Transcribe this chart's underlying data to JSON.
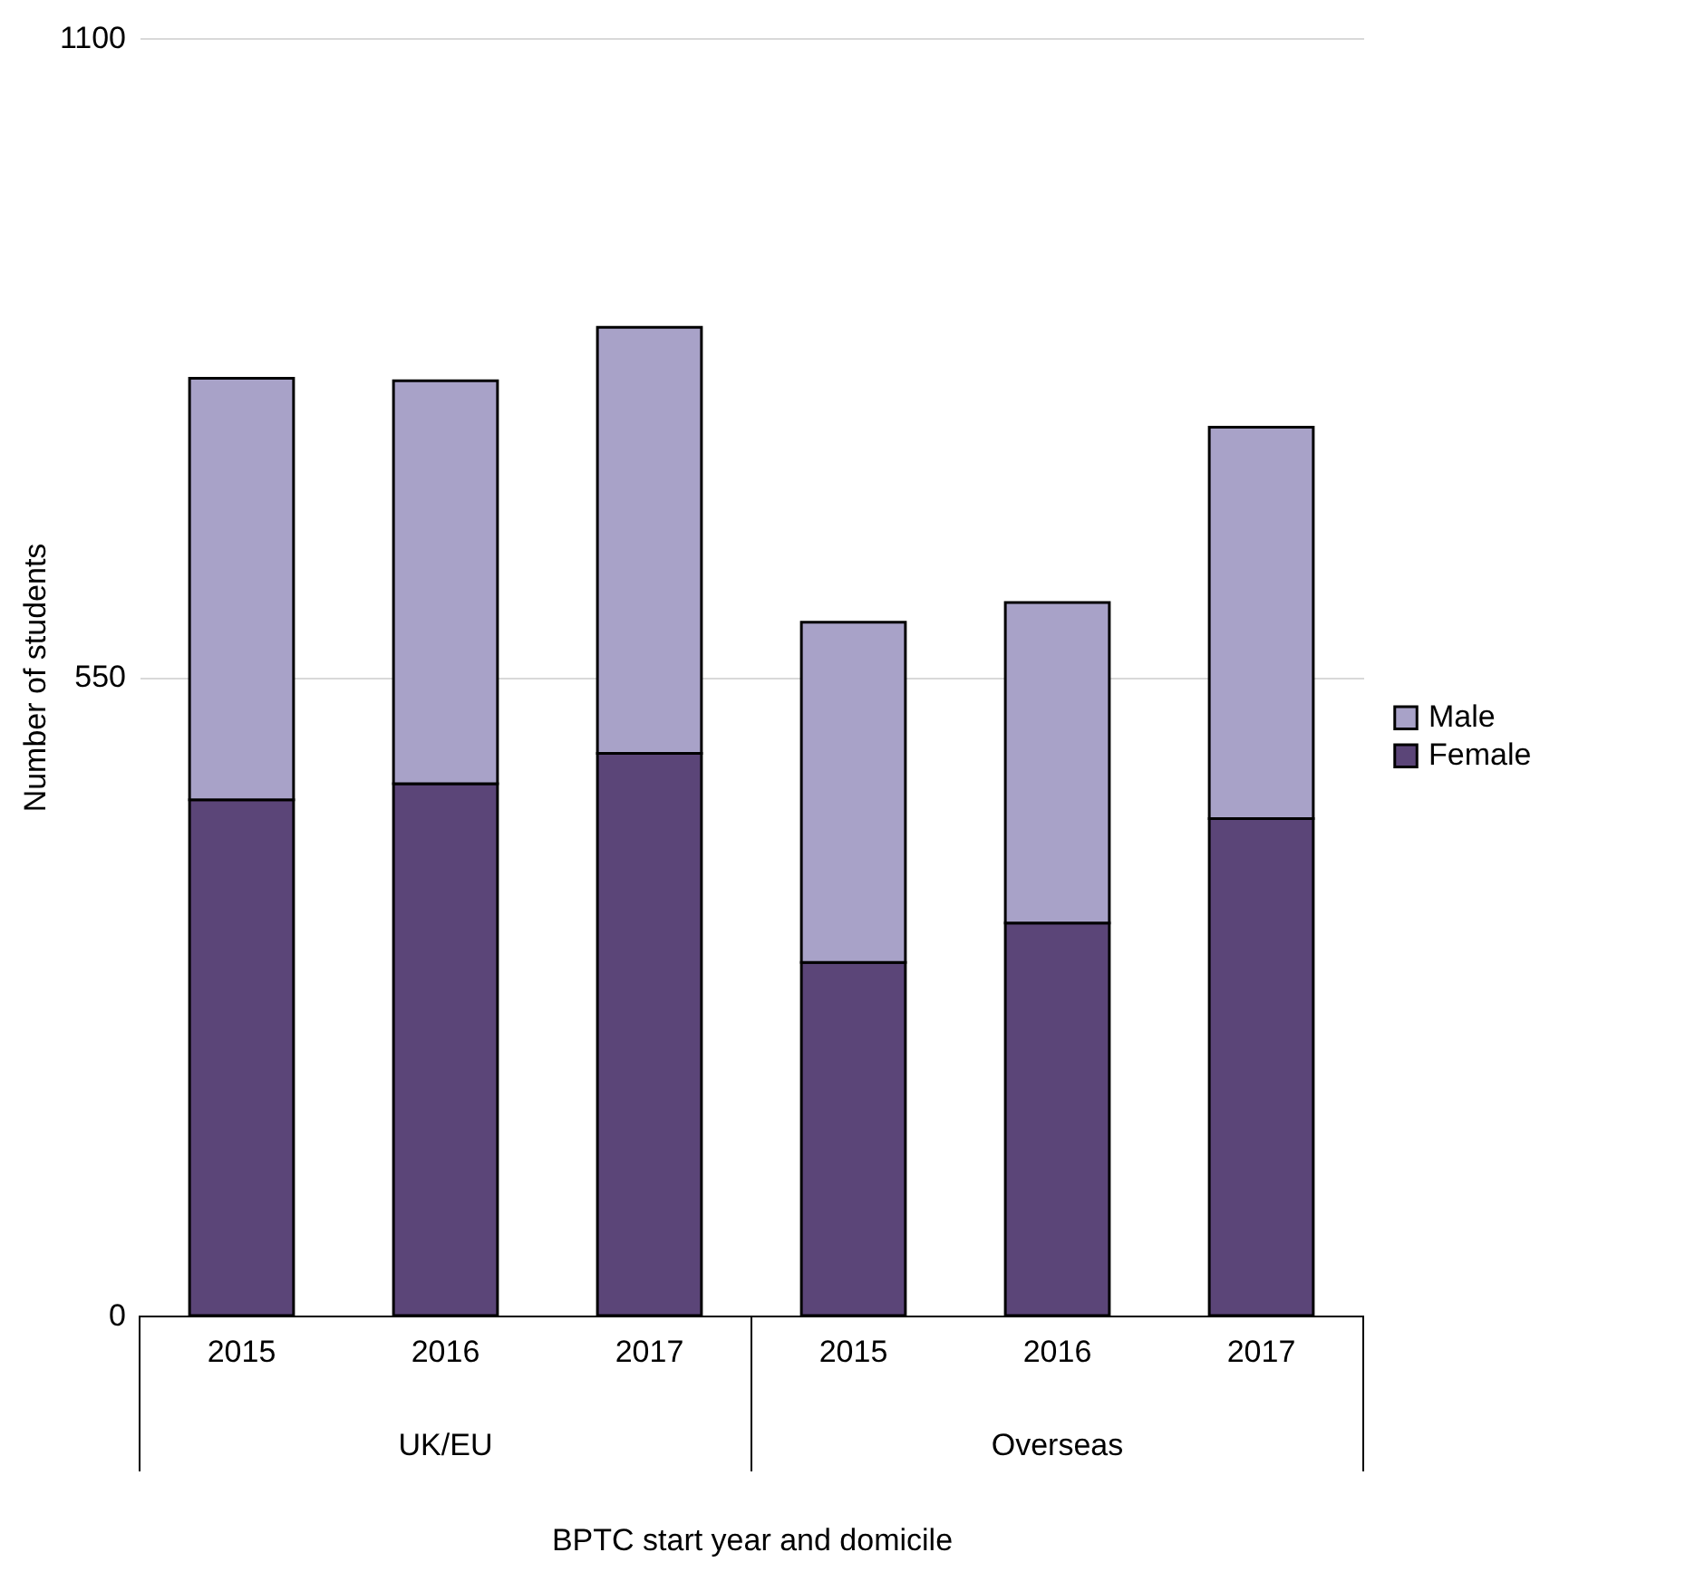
{
  "chart_data": {
    "type": "bar",
    "stacked": true,
    "categories": [
      "2015",
      "2016",
      "2017",
      "2015",
      "2016",
      "2017"
    ],
    "series": [
      {
        "name": "Female",
        "color": "#5b4578",
        "values": [
          444,
          458,
          484,
          304,
          338,
          428
        ]
      },
      {
        "name": "Male",
        "color": "#a8a2c8",
        "values": [
          363,
          347,
          367,
          293,
          276,
          337
        ]
      }
    ],
    "xlabel": "BPTC start year and domicile",
    "ylabel": "Number of students",
    "annotations": [
      "UK/EU",
      "Overseas"
    ],
    "ylim": [
      0,
      1100
    ],
    "yticks": [
      0,
      550,
      1100
    ],
    "grid": "y",
    "legend": "right"
  }
}
